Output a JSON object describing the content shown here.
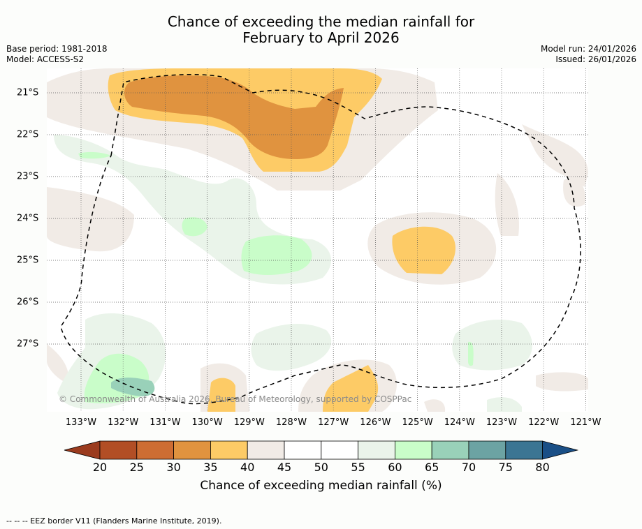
{
  "title_line1": "Chance of exceeding the median rainfall for",
  "title_line2": "February to April 2026",
  "base_period": "Base period: 1981-2018",
  "model": "Model: ACCESS-S2",
  "model_run": "Model run: 24/01/2026",
  "issued": "Issued: 26/01/2026",
  "copyright": "© Commonwealth of Australia 2026, Bureau of Meteorology, supported by COSPPac",
  "x_axis_labels": [
    "133°W",
    "132°W",
    "131°W",
    "130°W",
    "129°W",
    "128°W",
    "127°W",
    "126°W",
    "125°W",
    "124°W",
    "123°W",
    "122°W",
    "121°W"
  ],
  "y_axis_labels": [
    "21°S",
    "22°S",
    "23°S",
    "24°S",
    "25°S",
    "26°S",
    "27°S"
  ],
  "colorbar": {
    "ticks": [
      "20",
      "25",
      "30",
      "35",
      "40",
      "45",
      "50",
      "55",
      "60",
      "65",
      "70",
      "75",
      "80"
    ],
    "colors": [
      "#9b3b1e",
      "#b24e25",
      "#cd6d33",
      "#e0933f",
      "#fdcb66",
      "#f1ebe6",
      "#ffffff",
      "#ffffff",
      "#eaf4ea",
      "#c9fdc9",
      "#99d1b9",
      "#6ca3a3",
      "#3b7593",
      "#1a4f86"
    ],
    "label": "Chance of exceeding median rainfall (%)"
  },
  "footnote": "--  --  -- EEZ border V11 (Flanders Marine Institute, 2019)."
}
